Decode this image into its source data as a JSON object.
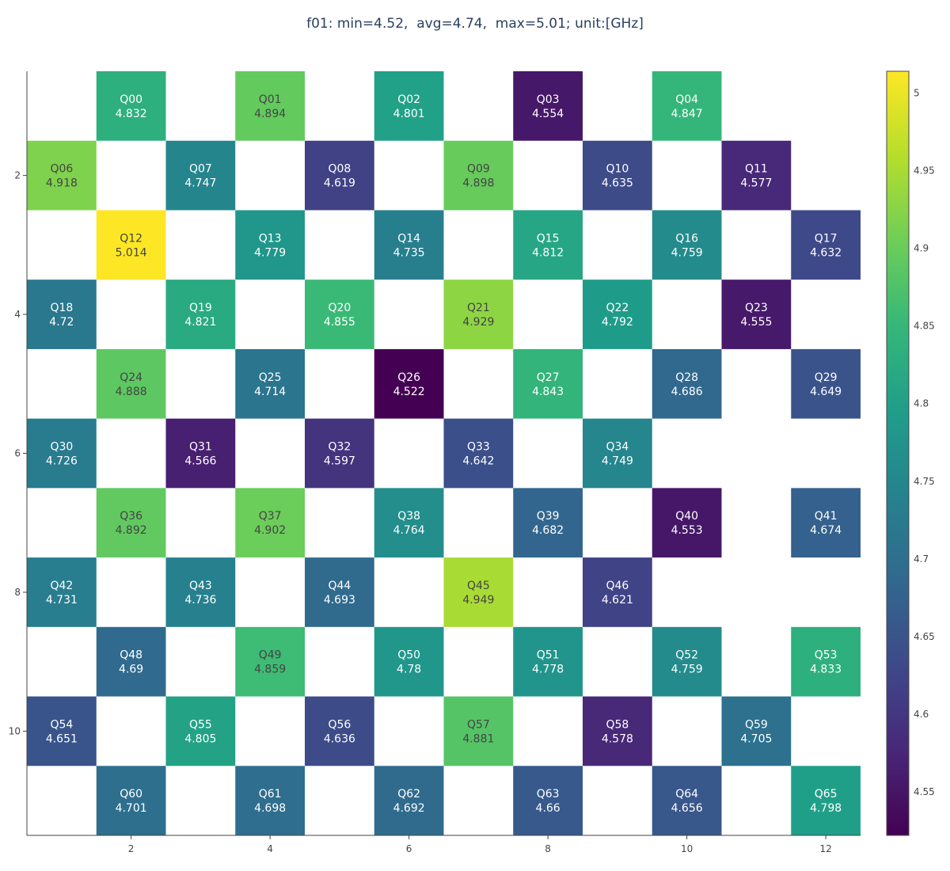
{
  "chart_data": {
    "type": "heatmap",
    "title": "f01: min=4.52,  avg=4.74,  max=5.01; unit:[GHz]",
    "xlabel": "",
    "ylabel": "",
    "x_range": [
      0.5,
      12.5
    ],
    "y_range": [
      0.5,
      11.5
    ],
    "y_reversed": true,
    "x_ticks": [
      2,
      4,
      6,
      8,
      10,
      12
    ],
    "y_ticks": [
      2,
      4,
      6,
      8,
      10
    ],
    "colorscale": "viridis",
    "colorscale_stops": [
      "#440154",
      "#482878",
      "#3e4989",
      "#31688e",
      "#26828e",
      "#1f9e89",
      "#35b779",
      "#6ece58",
      "#b5de2b",
      "#fde725"
    ],
    "zmin": 4.522,
    "zmax": 5.014,
    "colorbar_ticks": [
      4.55,
      4.6,
      4.65,
      4.7,
      4.75,
      4.8,
      4.85,
      4.9,
      4.95,
      5
    ],
    "cells": [
      {
        "label": "Q00",
        "value": "4.832",
        "x": 2,
        "y": 1
      },
      {
        "label": "Q01",
        "value": "4.894",
        "x": 4,
        "y": 1
      },
      {
        "label": "Q02",
        "value": "4.801",
        "x": 6,
        "y": 1
      },
      {
        "label": "Q03",
        "value": "4.554",
        "x": 8,
        "y": 1
      },
      {
        "label": "Q04",
        "value": "4.847",
        "x": 10,
        "y": 1
      },
      {
        "label": "Q06",
        "value": "4.918",
        "x": 1,
        "y": 2
      },
      {
        "label": "Q07",
        "value": "4.747",
        "x": 3,
        "y": 2
      },
      {
        "label": "Q08",
        "value": "4.619",
        "x": 5,
        "y": 2
      },
      {
        "label": "Q09",
        "value": "4.898",
        "x": 7,
        "y": 2
      },
      {
        "label": "Q10",
        "value": "4.635",
        "x": 9,
        "y": 2
      },
      {
        "label": "Q11",
        "value": "4.577",
        "x": 11,
        "y": 2
      },
      {
        "label": "Q12",
        "value": "5.014",
        "x": 2,
        "y": 3
      },
      {
        "label": "Q13",
        "value": "4.779",
        "x": 4,
        "y": 3
      },
      {
        "label": "Q14",
        "value": "4.735",
        "x": 6,
        "y": 3
      },
      {
        "label": "Q15",
        "value": "4.812",
        "x": 8,
        "y": 3
      },
      {
        "label": "Q16",
        "value": "4.759",
        "x": 10,
        "y": 3
      },
      {
        "label": "Q17",
        "value": "4.632",
        "x": 12,
        "y": 3
      },
      {
        "label": "Q18",
        "value": "4.72",
        "x": 1,
        "y": 4
      },
      {
        "label": "Q19",
        "value": "4.821",
        "x": 3,
        "y": 4
      },
      {
        "label": "Q20",
        "value": "4.855",
        "x": 5,
        "y": 4
      },
      {
        "label": "Q21",
        "value": "4.929",
        "x": 7,
        "y": 4
      },
      {
        "label": "Q22",
        "value": "4.792",
        "x": 9,
        "y": 4
      },
      {
        "label": "Q23",
        "value": "4.555",
        "x": 11,
        "y": 4
      },
      {
        "label": "Q24",
        "value": "4.888",
        "x": 2,
        "y": 5
      },
      {
        "label": "Q25",
        "value": "4.714",
        "x": 4,
        "y": 5
      },
      {
        "label": "Q26",
        "value": "4.522",
        "x": 6,
        "y": 5
      },
      {
        "label": "Q27",
        "value": "4.843",
        "x": 8,
        "y": 5
      },
      {
        "label": "Q28",
        "value": "4.686",
        "x": 10,
        "y": 5
      },
      {
        "label": "Q29",
        "value": "4.649",
        "x": 12,
        "y": 5
      },
      {
        "label": "Q30",
        "value": "4.726",
        "x": 1,
        "y": 6
      },
      {
        "label": "Q31",
        "value": "4.566",
        "x": 3,
        "y": 6
      },
      {
        "label": "Q32",
        "value": "4.597",
        "x": 5,
        "y": 6
      },
      {
        "label": "Q33",
        "value": "4.642",
        "x": 7,
        "y": 6
      },
      {
        "label": "Q34",
        "value": "4.749",
        "x": 9,
        "y": 6
      },
      {
        "label": "Q36",
        "value": "4.892",
        "x": 2,
        "y": 7
      },
      {
        "label": "Q37",
        "value": "4.902",
        "x": 4,
        "y": 7
      },
      {
        "label": "Q38",
        "value": "4.764",
        "x": 6,
        "y": 7
      },
      {
        "label": "Q39",
        "value": "4.682",
        "x": 8,
        "y": 7
      },
      {
        "label": "Q40",
        "value": "4.553",
        "x": 10,
        "y": 7
      },
      {
        "label": "Q41",
        "value": "4.674",
        "x": 12,
        "y": 7
      },
      {
        "label": "Q42",
        "value": "4.731",
        "x": 1,
        "y": 8
      },
      {
        "label": "Q43",
        "value": "4.736",
        "x": 3,
        "y": 8
      },
      {
        "label": "Q44",
        "value": "4.693",
        "x": 5,
        "y": 8
      },
      {
        "label": "Q45",
        "value": "4.949",
        "x": 7,
        "y": 8
      },
      {
        "label": "Q46",
        "value": "4.621",
        "x": 9,
        "y": 8
      },
      {
        "label": "Q48",
        "value": "4.69",
        "x": 2,
        "y": 9
      },
      {
        "label": "Q49",
        "value": "4.859",
        "x": 4,
        "y": 9
      },
      {
        "label": "Q50",
        "value": "4.78",
        "x": 6,
        "y": 9
      },
      {
        "label": "Q51",
        "value": "4.778",
        "x": 8,
        "y": 9
      },
      {
        "label": "Q52",
        "value": "4.759",
        "x": 10,
        "y": 9
      },
      {
        "label": "Q53",
        "value": "4.833",
        "x": 12,
        "y": 9
      },
      {
        "label": "Q54",
        "value": "4.651",
        "x": 1,
        "y": 10
      },
      {
        "label": "Q55",
        "value": "4.805",
        "x": 3,
        "y": 10
      },
      {
        "label": "Q56",
        "value": "4.636",
        "x": 5,
        "y": 10
      },
      {
        "label": "Q57",
        "value": "4.881",
        "x": 7,
        "y": 10
      },
      {
        "label": "Q58",
        "value": "4.578",
        "x": 9,
        "y": 10
      },
      {
        "label": "Q59",
        "value": "4.705",
        "x": 11,
        "y": 10
      },
      {
        "label": "Q60",
        "value": "4.701",
        "x": 2,
        "y": 11
      },
      {
        "label": "Q61",
        "value": "4.698",
        "x": 4,
        "y": 11
      },
      {
        "label": "Q62",
        "value": "4.692",
        "x": 6,
        "y": 11
      },
      {
        "label": "Q63",
        "value": "4.66",
        "x": 8,
        "y": 11
      },
      {
        "label": "Q64",
        "value": "4.656",
        "x": 10,
        "y": 11
      },
      {
        "label": "Q65",
        "value": "4.798",
        "x": 12,
        "y": 11
      }
    ]
  }
}
